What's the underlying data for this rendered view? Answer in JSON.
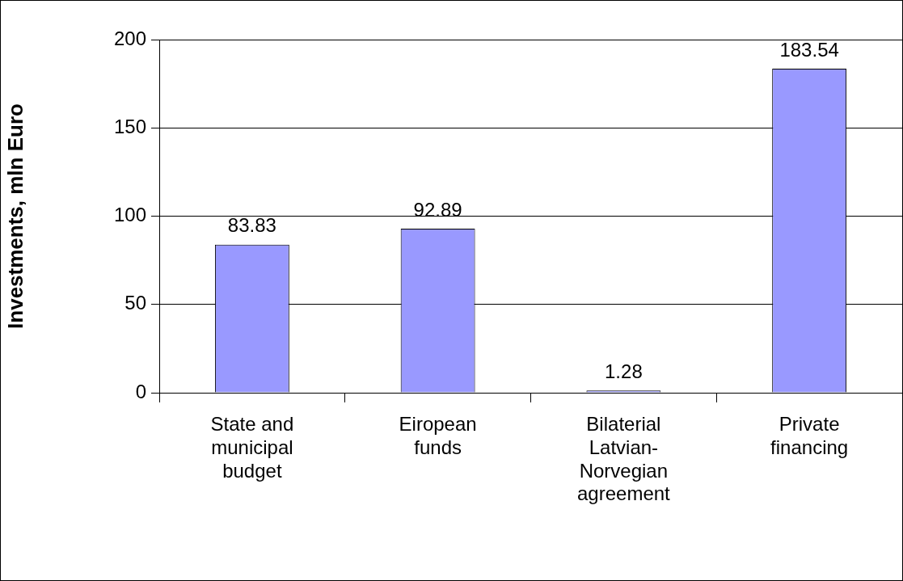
{
  "chart_data": {
    "type": "bar",
    "ylabel": "Investments, mln Euro",
    "categories": [
      "State and municipal budget",
      "Eiropean funds",
      "Bilaterial Latvian-Norvegian agreement",
      "Private financing"
    ],
    "values": [
      83.83,
      92.89,
      1.28,
      183.54
    ],
    "color": "#9999ff",
    "ylim": [
      0,
      200
    ],
    "yticks": [
      0,
      50,
      100,
      150,
      200
    ],
    "grid": "y",
    "legend": false,
    "data_labels": true
  }
}
